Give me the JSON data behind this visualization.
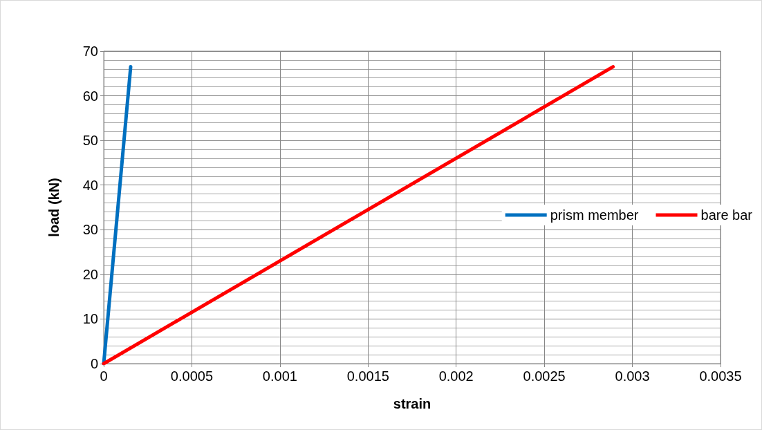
{
  "chart_data": {
    "type": "line",
    "xlabel": "strain",
    "ylabel": "load (kN)",
    "xlim": [
      0,
      0.0035
    ],
    "xticks": [
      0,
      0.0005,
      0.001,
      0.0015,
      0.002,
      0.0025,
      0.003,
      0.0035
    ],
    "ylim": [
      0,
      70
    ],
    "yticks": [
      0,
      10,
      20,
      30,
      40,
      50,
      60,
      70
    ],
    "grid": true,
    "legend": "right",
    "marker": "none",
    "line_style": "solid",
    "series": [
      {
        "name": "prism member",
        "color": "#0070c0",
        "x": [
          0,
          0.000153
        ],
        "values": [
          0,
          66.5
        ]
      },
      {
        "name": "bare bar",
        "color": "#ff0000",
        "x": [
          0,
          0.00289
        ],
        "values": [
          0,
          66.5
        ]
      }
    ]
  }
}
